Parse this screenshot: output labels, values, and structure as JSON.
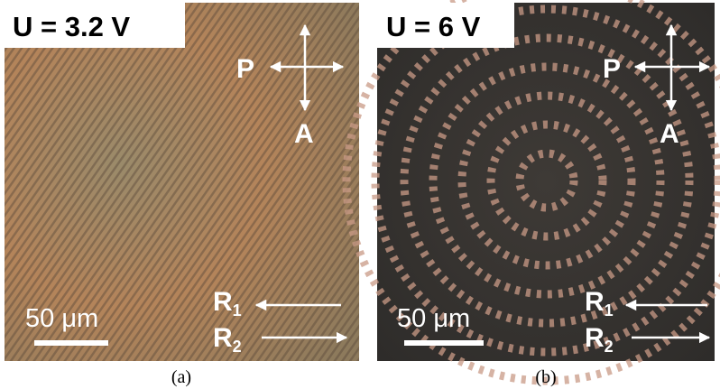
{
  "panels": [
    {
      "voltage_label": "U = 3.2 V",
      "polarizer": "P",
      "analyzer": "A",
      "r1": {
        "base": "R",
        "sub": "1"
      },
      "r2": {
        "base": "R",
        "sub": "2"
      },
      "scale_bar": "50 μm",
      "caption": "(a)"
    },
    {
      "voltage_label": "U = 6 V",
      "polarizer": "P",
      "analyzer": "A",
      "r1": {
        "base": "R",
        "sub": "1"
      },
      "r2": {
        "base": "R",
        "sub": "2"
      },
      "scale_bar": "50 μm",
      "caption": "(b)"
    }
  ]
}
